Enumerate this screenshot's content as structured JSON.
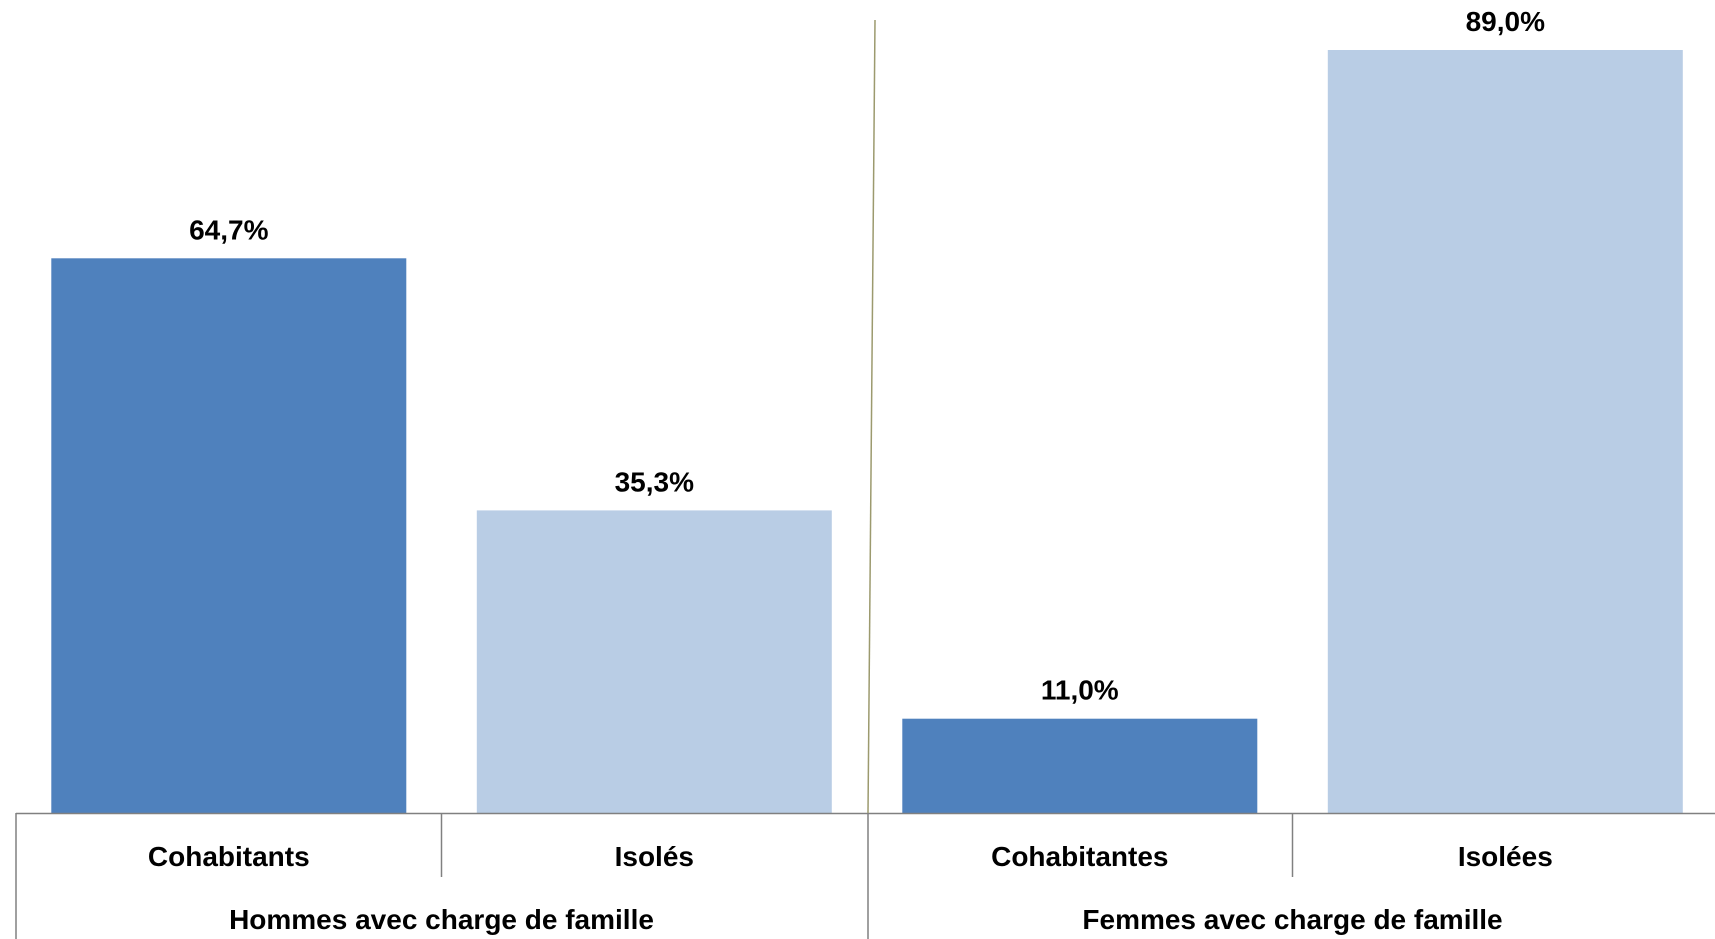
{
  "chart_data": {
    "type": "bar",
    "groups": [
      {
        "label": "Hommes avec charge de famille",
        "categories": [
          {
            "label": "Cohabitants",
            "value": 64.7,
            "value_label": "64,7%",
            "color": "#4F81BD"
          },
          {
            "label": "Isolés",
            "value": 35.3,
            "value_label": "35,3%",
            "color": "#B9CDE5"
          }
        ]
      },
      {
        "label": "Femmes avec charge de famille",
        "categories": [
          {
            "label": "Cohabitantes",
            "value": 11.0,
            "value_label": "11,0%",
            "color": "#4F81BD"
          },
          {
            "label": "Isolées",
            "value": 89.0,
            "value_label": "89,0%",
            "color": "#B9CDE5"
          }
        ]
      }
    ],
    "ylim": [
      0,
      100
    ],
    "grid": false,
    "legend": "none",
    "divider_color": "#9C9A6E",
    "axis_color": "#808080"
  }
}
